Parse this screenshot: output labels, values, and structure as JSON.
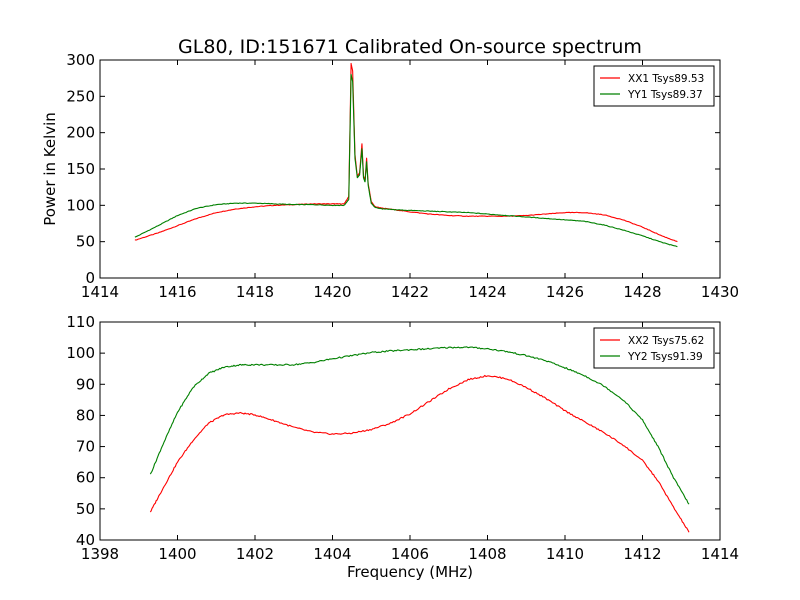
{
  "title": "GL80, ID:151671 Calibrated On-source spectrum",
  "colors": {
    "red": "#ff0000",
    "green": "#008000",
    "axis": "#000000"
  },
  "chart_data": [
    {
      "type": "line",
      "title": "GL80, ID:151671 Calibrated On-source spectrum",
      "xlabel": "",
      "ylabel": "Power in Kelvin",
      "xlim": [
        1414,
        1430
      ],
      "ylim": [
        0,
        300
      ],
      "xticks": [
        1414,
        1416,
        1418,
        1420,
        1422,
        1424,
        1426,
        1428,
        1430
      ],
      "yticks": [
        0,
        50,
        100,
        150,
        200,
        250,
        300
      ],
      "legend": "top-right",
      "series": [
        {
          "name": "XX1 Tsys89.53",
          "color": "#ff0000",
          "x": [
            1414.9,
            1415.5,
            1416,
            1416.5,
            1417,
            1417.5,
            1418,
            1418.5,
            1419,
            1419.5,
            1420,
            1420.3,
            1420.42,
            1420.48,
            1420.52,
            1420.58,
            1420.64,
            1420.7,
            1420.76,
            1420.8,
            1420.84,
            1420.88,
            1420.92,
            1420.96,
            1421.0,
            1421.1,
            1421.3,
            1421.6,
            1422,
            1422.5,
            1423,
            1423.5,
            1424,
            1424.5,
            1425,
            1425.5,
            1426,
            1426.5,
            1427,
            1427.5,
            1428,
            1428.5,
            1428.9
          ],
          "values": [
            52,
            62,
            72,
            82,
            90,
            95,
            98,
            100,
            101,
            102,
            102,
            102,
            112,
            295,
            285,
            170,
            140,
            145,
            185,
            140,
            135,
            165,
            130,
            118,
            105,
            98,
            96,
            94,
            91,
            88,
            86,
            85,
            85,
            85,
            86,
            88,
            90,
            90,
            87,
            80,
            70,
            58,
            50
          ]
        },
        {
          "name": "YY1 Tsys89.37",
          "color": "#008000",
          "x": [
            1414.9,
            1415.5,
            1416,
            1416.5,
            1417,
            1417.5,
            1418,
            1418.5,
            1419,
            1419.5,
            1420,
            1420.3,
            1420.42,
            1420.48,
            1420.52,
            1420.58,
            1420.64,
            1420.7,
            1420.76,
            1420.8,
            1420.84,
            1420.88,
            1420.92,
            1420.96,
            1421.0,
            1421.1,
            1421.3,
            1421.6,
            1422,
            1422.5,
            1423,
            1423.5,
            1424,
            1424.5,
            1425,
            1425.5,
            1426,
            1426.5,
            1427,
            1427.5,
            1428,
            1428.5,
            1428.9
          ],
          "values": [
            56,
            72,
            86,
            96,
            101,
            103,
            103,
            102,
            101,
            101,
            100,
            100,
            108,
            280,
            270,
            165,
            138,
            142,
            178,
            138,
            132,
            160,
            128,
            115,
            103,
            97,
            95,
            94,
            93,
            92,
            91,
            90,
            88,
            86,
            84,
            82,
            80,
            78,
            73,
            66,
            58,
            49,
            43
          ]
        }
      ]
    },
    {
      "type": "line",
      "title": "",
      "xlabel": "Frequency (MHz)",
      "ylabel": "",
      "xlim": [
        1398,
        1414
      ],
      "ylim": [
        40,
        110
      ],
      "xticks": [
        1398,
        1400,
        1402,
        1404,
        1406,
        1408,
        1410,
        1412,
        1414
      ],
      "yticks": [
        40,
        50,
        60,
        70,
        80,
        90,
        100,
        110
      ],
      "legend": "top-right",
      "series": [
        {
          "name": "XX2 Tsys75.62",
          "color": "#ff0000",
          "x": [
            1399.3,
            1399.6,
            1400,
            1400.4,
            1400.8,
            1401.2,
            1401.6,
            1402,
            1402.5,
            1403,
            1403.5,
            1404,
            1404.5,
            1405,
            1405.5,
            1406,
            1406.5,
            1407,
            1407.5,
            1408,
            1408.5,
            1409,
            1409.5,
            1410,
            1410.5,
            1411,
            1411.5,
            1412,
            1412.4,
            1412.8,
            1413.2
          ],
          "values": [
            49,
            56,
            65,
            72,
            77.5,
            80.2,
            80.8,
            80.2,
            78.3,
            76.2,
            74.6,
            74.0,
            74.3,
            75.5,
            77.5,
            80.5,
            84.5,
            88.5,
            91.5,
            92.8,
            91.8,
            89,
            85.5,
            81.5,
            78,
            74.5,
            70.5,
            65.5,
            59,
            50.5,
            42.5
          ]
        },
        {
          "name": "YY2 Tsys91.39",
          "color": "#008000",
          "x": [
            1399.3,
            1399.6,
            1400,
            1400.4,
            1400.8,
            1401.2,
            1401.6,
            1402,
            1402.5,
            1403,
            1403.5,
            1404,
            1404.5,
            1405,
            1405.5,
            1406,
            1406.5,
            1407,
            1407.5,
            1408,
            1408.5,
            1409,
            1409.5,
            1410,
            1410.5,
            1411,
            1411.5,
            1412,
            1412.4,
            1412.8,
            1413.2
          ],
          "values": [
            61,
            70,
            81,
            89,
            93.5,
            95.5,
            96.2,
            96.3,
            96.2,
            96.3,
            97,
            98.2,
            99.2,
            100.2,
            100.7,
            101.1,
            101.4,
            101.8,
            101.9,
            101.4,
            100.5,
            99.2,
            97.6,
            95.3,
            92.8,
            89.5,
            85,
            78.5,
            70,
            60,
            51.5
          ]
        }
      ]
    }
  ]
}
